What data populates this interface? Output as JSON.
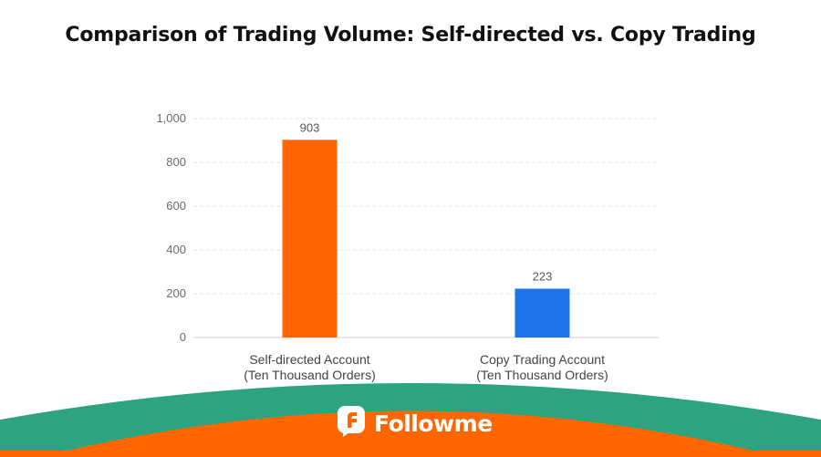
{
  "title": "Comparison of Trading Volume: Self-directed vs. Copy Trading",
  "colors": {
    "orange": "#FF6600",
    "blue": "#1E73E8",
    "footer_green": "#2EA37F",
    "grid": "#e6e6e6"
  },
  "chart_data": {
    "type": "bar",
    "title": "Comparison of Trading Volume: Self-directed vs. Copy Trading",
    "categories": [
      [
        "Self-directed Account",
        "(Ten Thousand Orders)"
      ],
      [
        "Copy Trading Account",
        "(Ten Thousand Orders)"
      ]
    ],
    "values": [
      903,
      223
    ],
    "data_labels": [
      "903",
      "223"
    ],
    "bar_colors": [
      "#FF6600",
      "#1E73E8"
    ],
    "ylim": [
      0,
      1000
    ],
    "yticks": [
      0,
      200,
      400,
      600,
      800,
      1000
    ],
    "ytick_labels": [
      "0",
      "200",
      "400",
      "600",
      "800",
      "1,000"
    ],
    "grid": true,
    "xlabel": "",
    "ylabel": ""
  },
  "footer": {
    "brand_name": "Followme",
    "logo_icon": "followme-logo-icon"
  }
}
